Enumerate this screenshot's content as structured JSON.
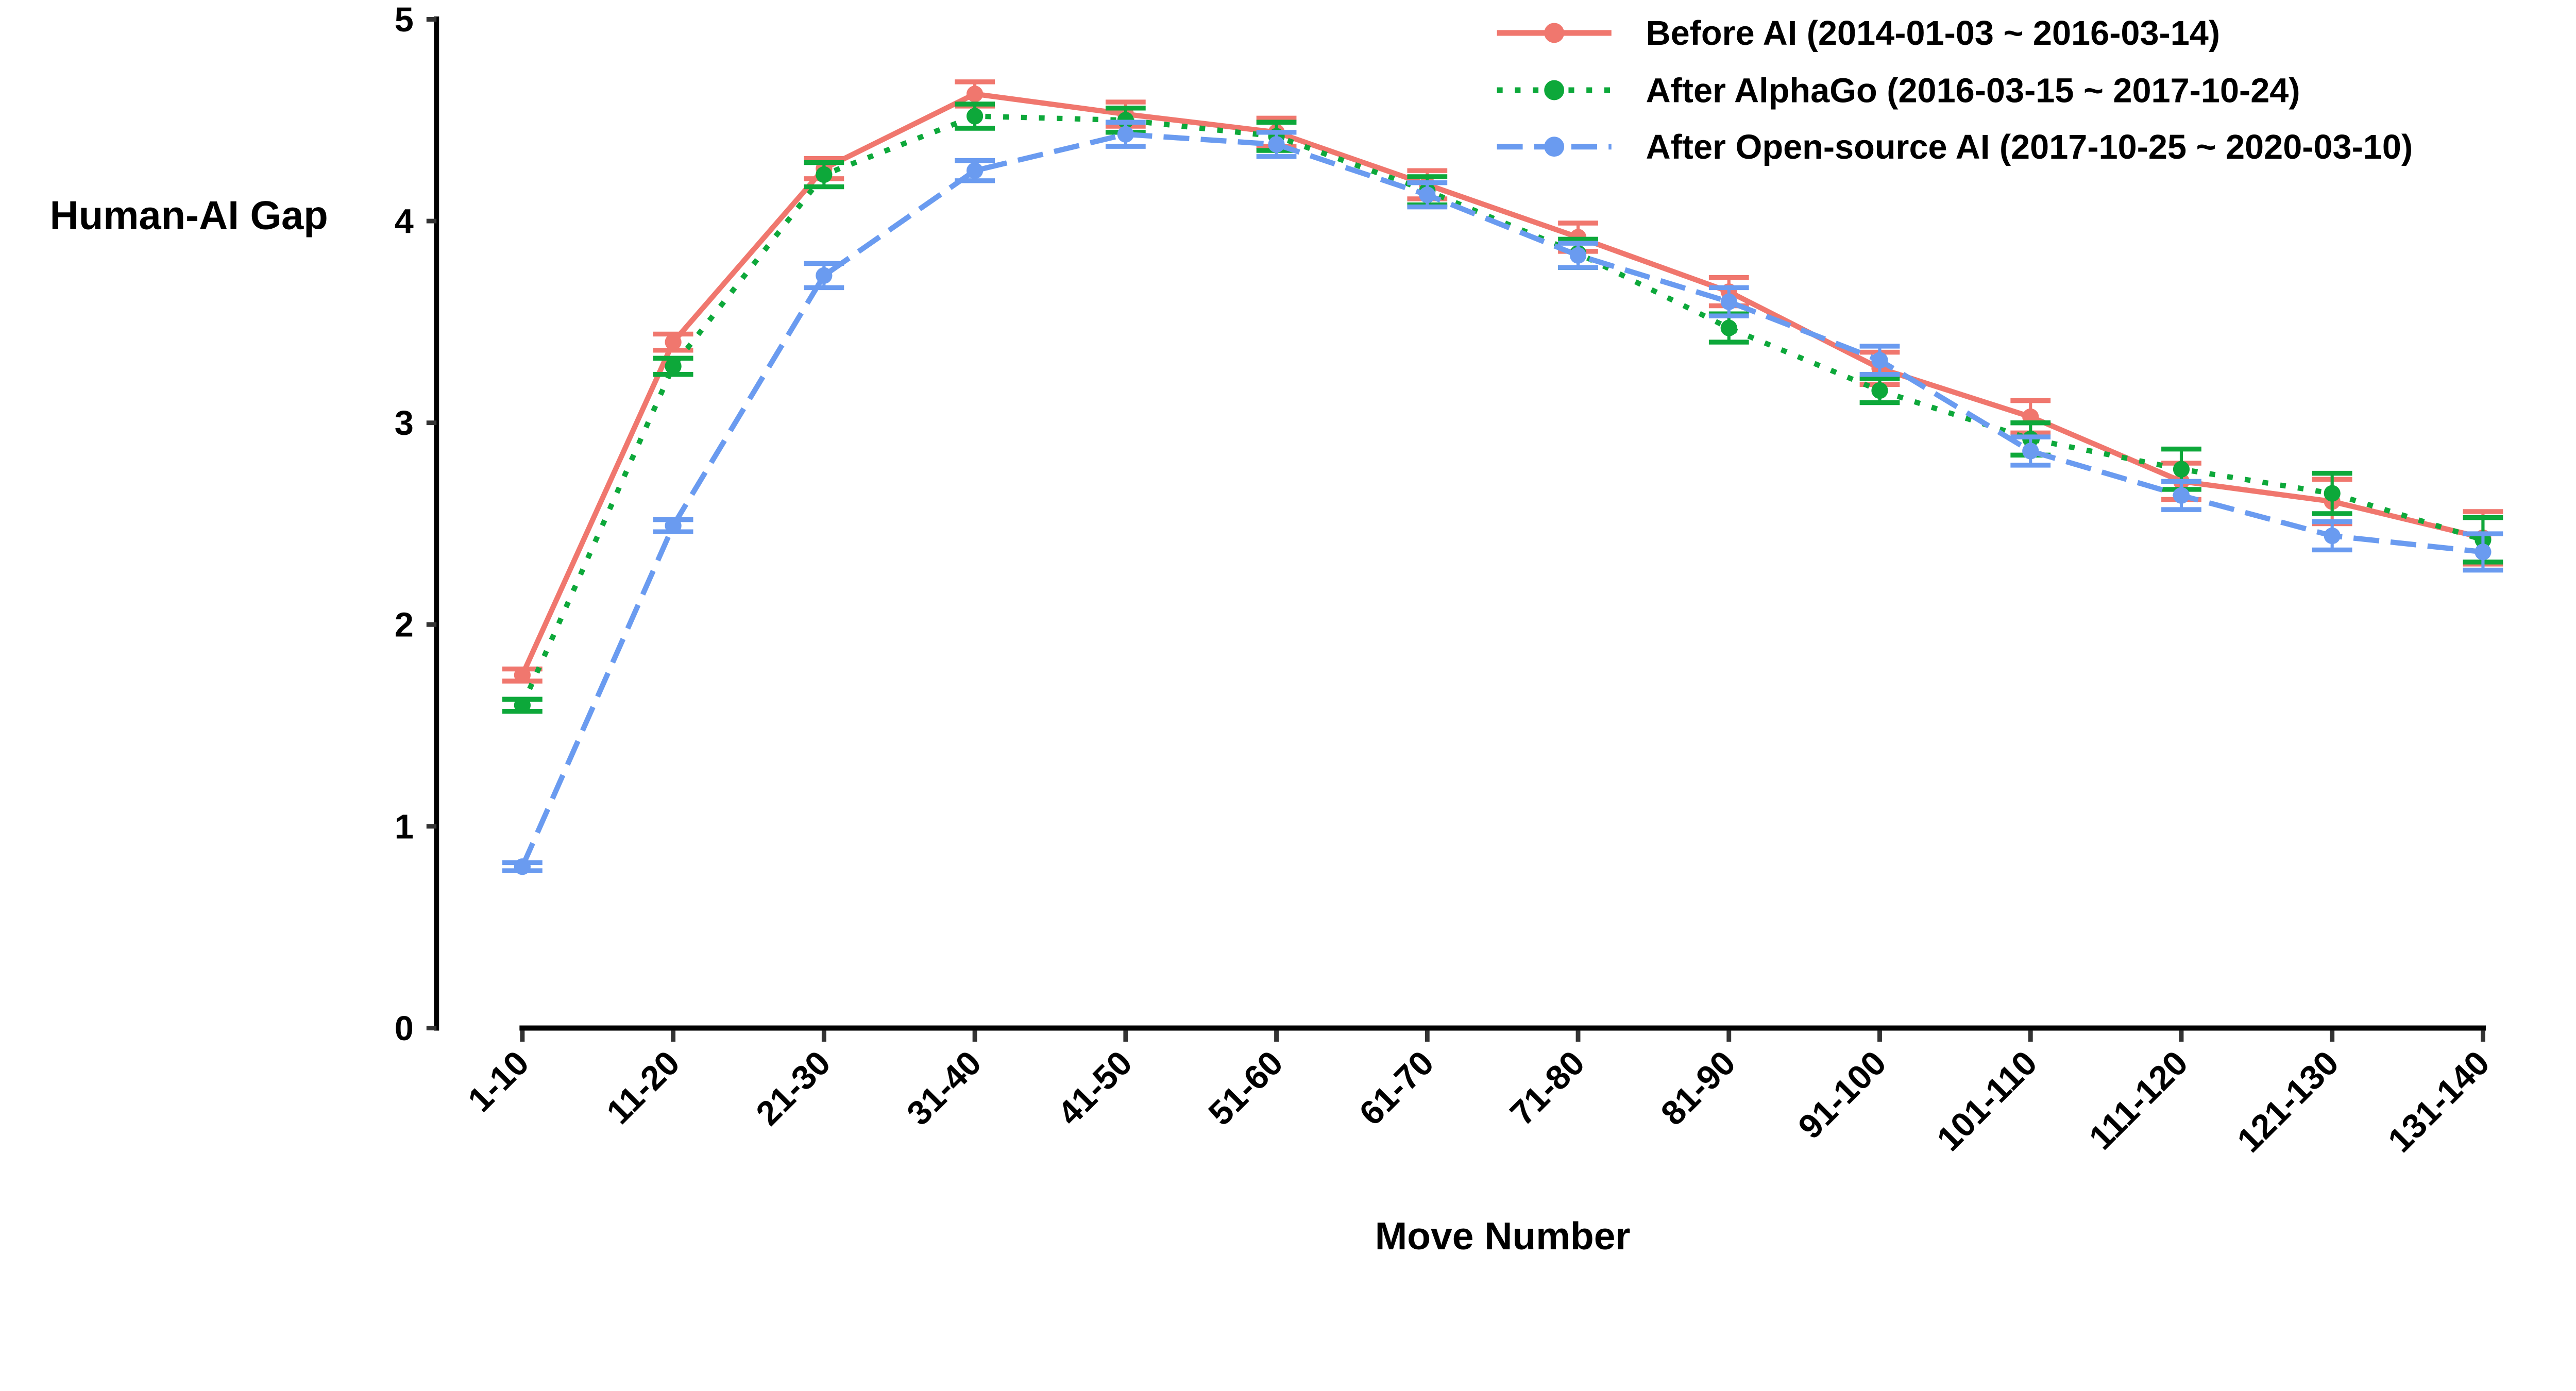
{
  "chart_data": {
    "type": "line",
    "title": "",
    "xlabel": "Move Number",
    "ylabel": "Human-AI Gap",
    "ylim": [
      0,
      5
    ],
    "yticks": [
      "0",
      "1",
      "2",
      "3",
      "4",
      "5"
    ],
    "grid": false,
    "legend_position": "top-right",
    "error_bars": true,
    "categories": [
      "1-10",
      "11-20",
      "21-30",
      "31-40",
      "41-50",
      "51-60",
      "61-70",
      "71-80",
      "81-90",
      "91-100",
      "101-110",
      "111-120",
      "121-130",
      "131-140"
    ],
    "series": [
      {
        "name": "Before AI (2014-01-03 ~ 2016-03-14)",
        "color": "#F0776E",
        "line_style": "solid",
        "marker": "circle",
        "values": [
          1.75,
          3.4,
          4.26,
          4.63,
          4.53,
          4.44,
          4.18,
          3.92,
          3.65,
          3.27,
          3.03,
          2.71,
          2.61,
          2.43
        ],
        "errors": [
          0.03,
          0.04,
          0.05,
          0.06,
          0.06,
          0.07,
          0.07,
          0.07,
          0.07,
          0.08,
          0.08,
          0.09,
          0.11,
          0.13
        ]
      },
      {
        "name": "After AlphaGo (2016-03-15 ~ 2017-10-24)",
        "color": "#0DA83A",
        "line_style": "dotted",
        "marker": "circle",
        "values": [
          1.6,
          3.28,
          4.23,
          4.52,
          4.5,
          4.42,
          4.15,
          3.84,
          3.47,
          3.16,
          2.92,
          2.77,
          2.65,
          2.42
        ],
        "errors": [
          0.03,
          0.04,
          0.06,
          0.06,
          0.06,
          0.07,
          0.07,
          0.07,
          0.07,
          0.06,
          0.08,
          0.1,
          0.1,
          0.11
        ]
      },
      {
        "name": "After Open-source AI (2017-10-25 ~ 2020-03-10)",
        "color": "#6A9BF0",
        "line_style": "dashed",
        "marker": "circle",
        "values": [
          0.8,
          2.49,
          3.73,
          4.25,
          4.43,
          4.38,
          4.13,
          3.83,
          3.6,
          3.31,
          2.86,
          2.64,
          2.44,
          2.36
        ],
        "errors": [
          0.02,
          0.03,
          0.06,
          0.05,
          0.06,
          0.06,
          0.06,
          0.06,
          0.07,
          0.07,
          0.07,
          0.07,
          0.07,
          0.09
        ]
      }
    ],
    "axis_color": "#000000",
    "tick_color": "#333333"
  }
}
